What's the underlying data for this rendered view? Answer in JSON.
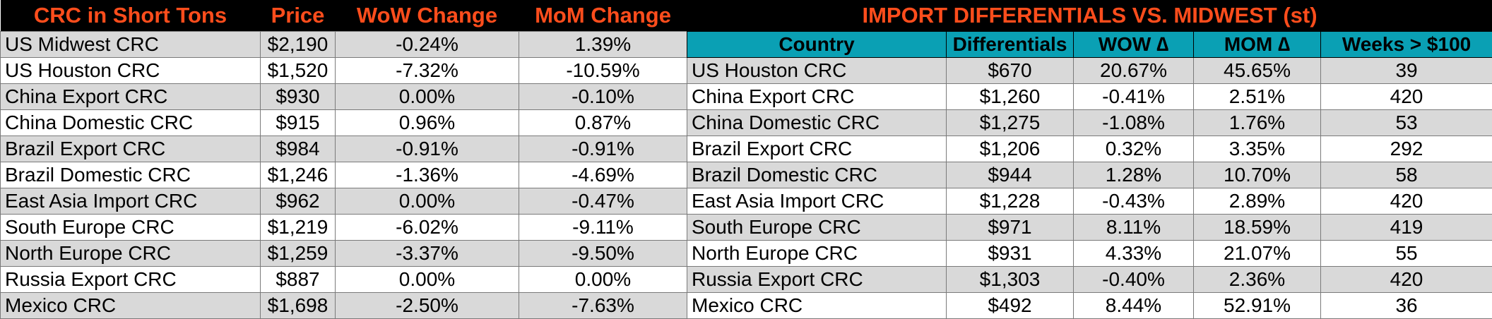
{
  "left": {
    "headers": [
      "CRC in Short Tons",
      "Price",
      "WoW Change",
      "MoM Change"
    ],
    "rows": [
      [
        "US Midwest CRC",
        "$2,190",
        "-0.24%",
        "1.39%"
      ],
      [
        "US Houston CRC",
        "$1,520",
        "-7.32%",
        "-10.59%"
      ],
      [
        "China Export CRC",
        "$930",
        "0.00%",
        "-0.10%"
      ],
      [
        "China Domestic CRC",
        "$915",
        "0.96%",
        "0.87%"
      ],
      [
        "Brazil Export CRC",
        "$984",
        "-0.91%",
        "-0.91%"
      ],
      [
        "Brazil Domestic CRC",
        "$1,246",
        "-1.36%",
        "-4.69%"
      ],
      [
        "East Asia Import CRC",
        "$962",
        "0.00%",
        "-0.47%"
      ],
      [
        "South Europe CRC",
        "$1,219",
        "-6.02%",
        "-9.11%"
      ],
      [
        "North Europe CRC",
        "$1,259",
        "-3.37%",
        "-9.50%"
      ],
      [
        "Russia Export CRC",
        "$887",
        "0.00%",
        "0.00%"
      ],
      [
        "Mexico CRC",
        "$1,698",
        "-2.50%",
        "-7.63%"
      ]
    ]
  },
  "right": {
    "title": "IMPORT DIFFERENTIALS VS. MIDWEST (st)",
    "headers": [
      "Country",
      "Differentials",
      "WOW ∆",
      "MOM ∆",
      "Weeks > $100"
    ],
    "rows": [
      [
        "US Houston CRC",
        "$670",
        "20.67%",
        "45.65%",
        "39"
      ],
      [
        "China Export CRC",
        "$1,260",
        "-0.41%",
        "2.51%",
        "420"
      ],
      [
        "China Domestic CRC",
        "$1,275",
        "-1.08%",
        "1.76%",
        "53"
      ],
      [
        "Brazil Export CRC",
        "$1,206",
        "0.32%",
        "3.35%",
        "292"
      ],
      [
        "Brazil Domestic CRC",
        "$944",
        "1.28%",
        "10.70%",
        "58"
      ],
      [
        "East Asia Import CRC",
        "$1,228",
        "-0.43%",
        "2.89%",
        "420"
      ],
      [
        "South Europe CRC",
        "$971",
        "8.11%",
        "18.59%",
        "419"
      ],
      [
        "North Europe CRC",
        "$931",
        "4.33%",
        "21.07%",
        "55"
      ],
      [
        "Russia Export CRC",
        "$1,303",
        "-0.40%",
        "2.36%",
        "420"
      ],
      [
        "Mexico CRC",
        "$492",
        "8.44%",
        "52.91%",
        "36"
      ]
    ]
  },
  "colors": {
    "header_bg": "#000000",
    "header_text": "#ff4d1c",
    "subheader_bg": "#0aa0b4",
    "row_shade": "#d9d9d9"
  }
}
